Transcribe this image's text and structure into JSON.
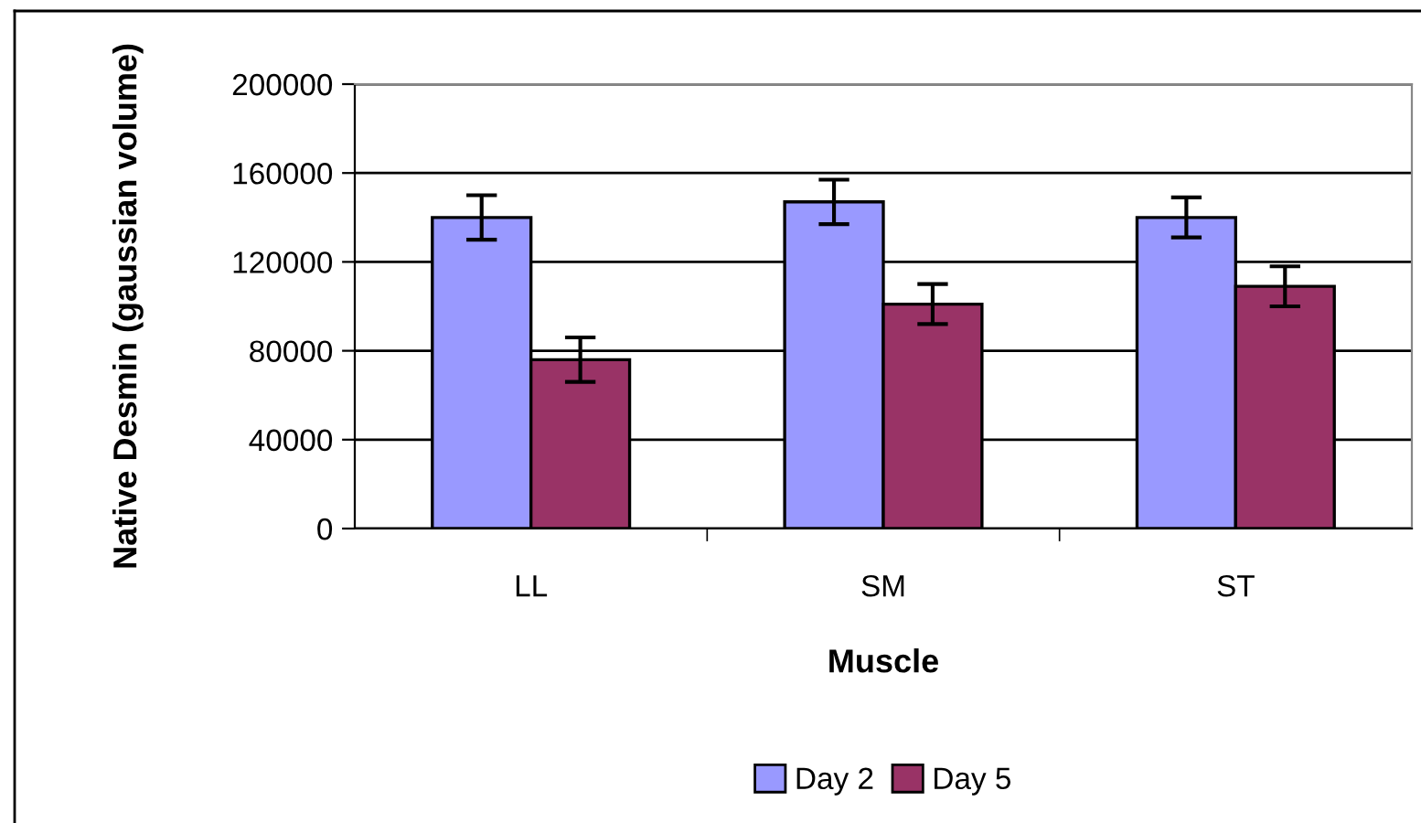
{
  "chart_data": {
    "type": "bar",
    "xlabel": "Muscle",
    "ylabel": "Native Desmin (gaussian volume)",
    "categories": [
      "LL",
      "SM",
      "ST"
    ],
    "series": [
      {
        "name": "Day 2",
        "color": "#9999ff",
        "values": [
          140000,
          147000,
          140000
        ],
        "errors": [
          10000,
          10000,
          9000
        ]
      },
      {
        "name": "Day 5",
        "color": "#993366",
        "values": [
          76000,
          101000,
          109000
        ],
        "errors": [
          10000,
          9000,
          9000
        ]
      }
    ],
    "ylim": [
      0,
      200000
    ],
    "yticks": [
      0,
      40000,
      80000,
      120000,
      160000,
      200000
    ],
    "grid": "y",
    "legend": "bottom"
  }
}
